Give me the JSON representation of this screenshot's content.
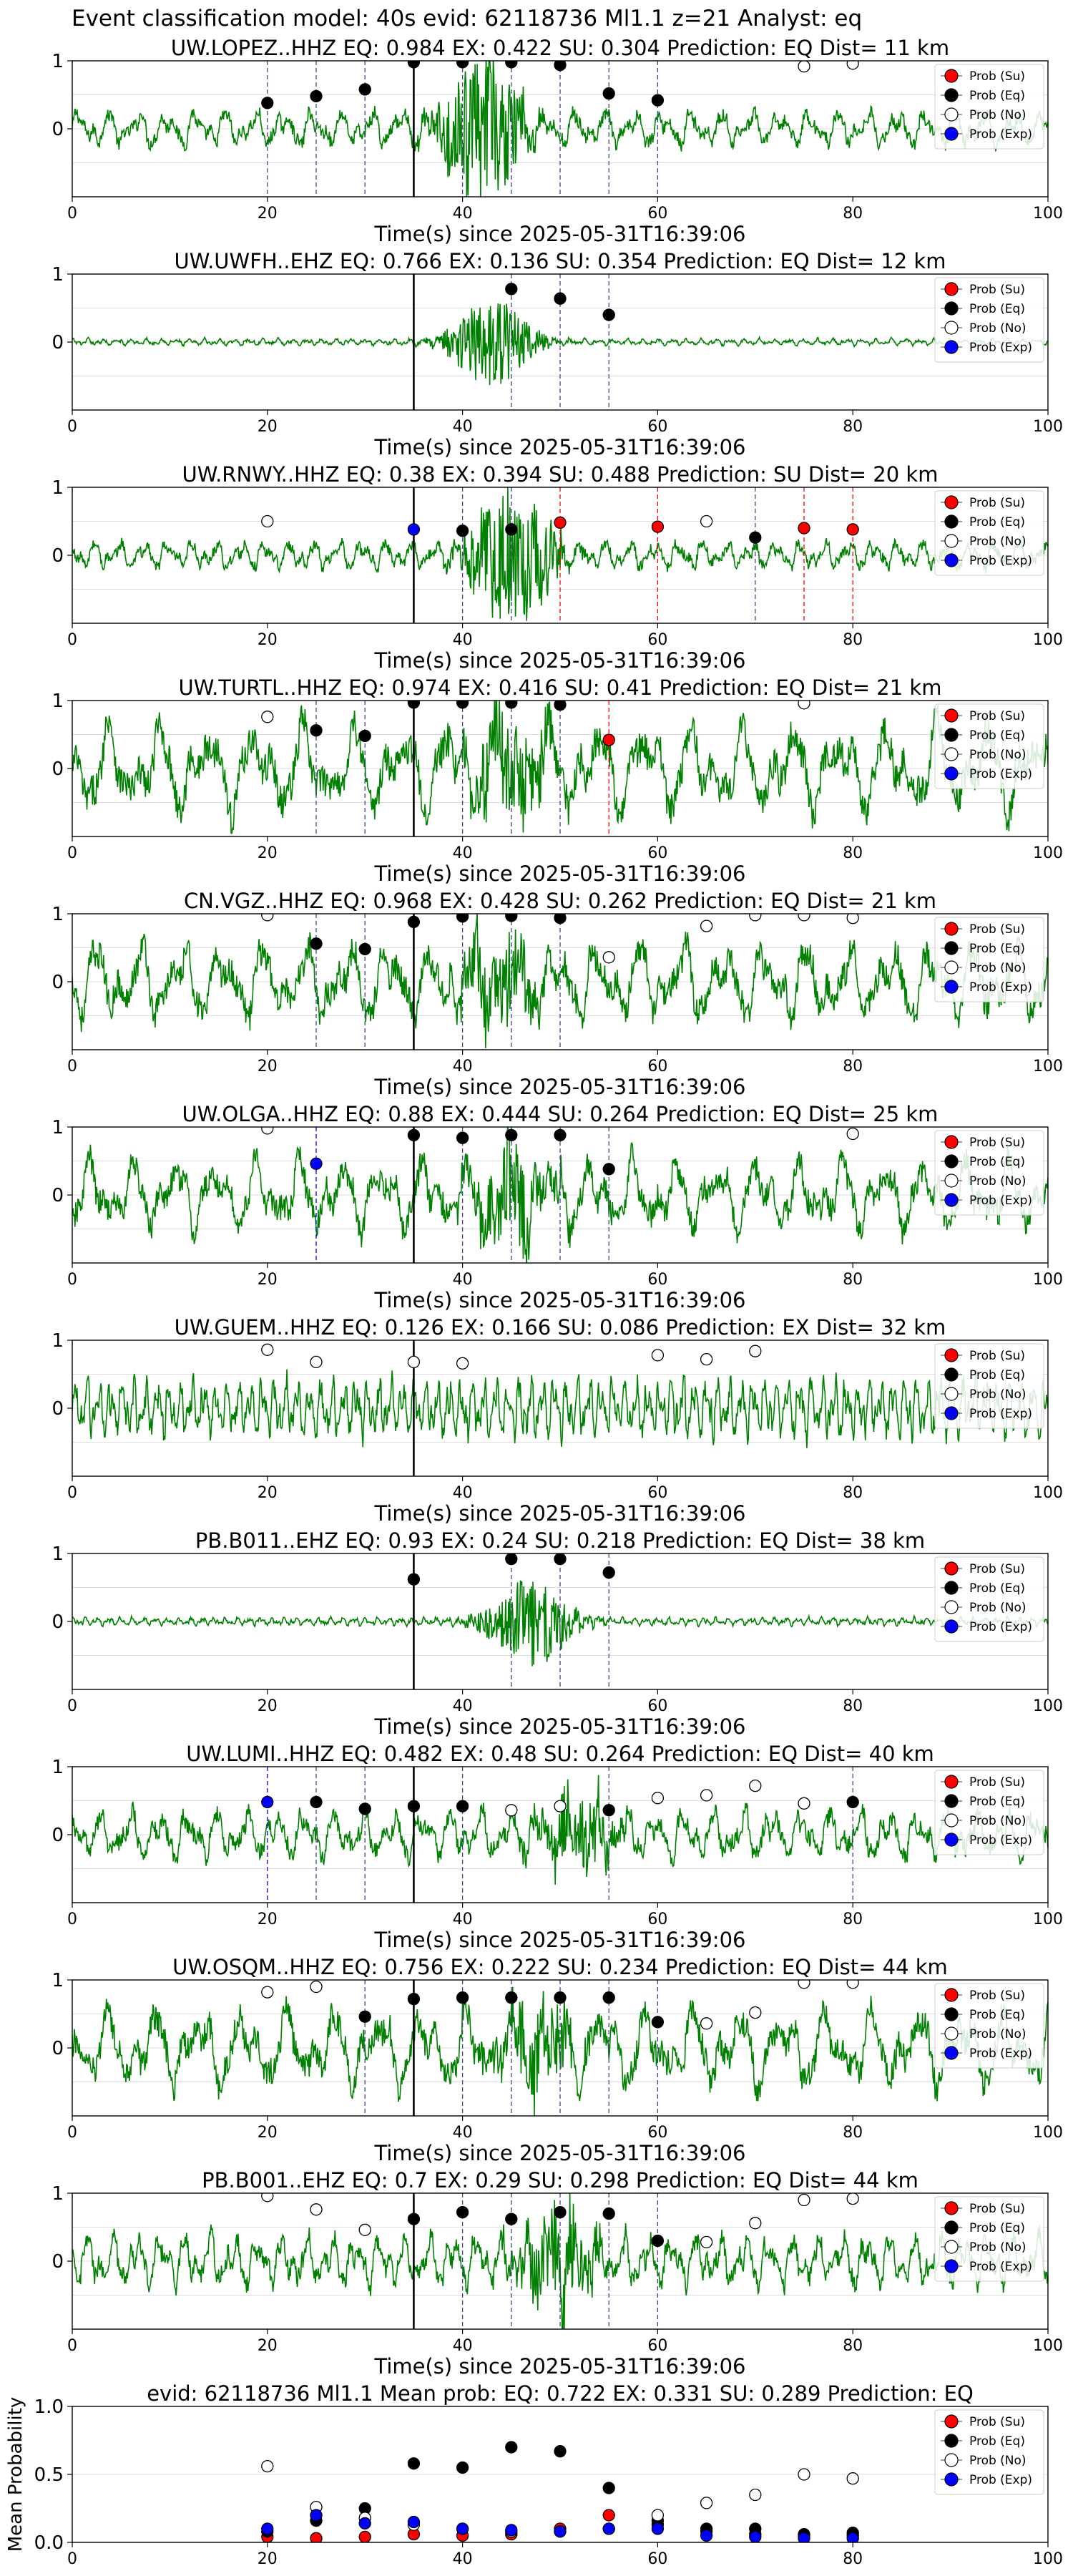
{
  "suptitle": "Event classification model: 40s evid: 62118736 Ml1.1 z=21 Analyst: eq",
  "xlabel": "Time(s) since 2025-05-31T16:39:06",
  "legend": [
    "Prob (Su)",
    "Prob (Eq)",
    "Prob (No)",
    "Prob (Exp)"
  ],
  "colors": {
    "su": "#ff0000",
    "eq": "#000000",
    "no": "#ffffff",
    "exp": "#0000ff",
    "wave": "#008000",
    "pick": "#000000"
  },
  "chart_data": [
    {
      "type": "line",
      "title": "UW.LOPEZ..HHZ   EQ: 0.984  EX: 0.422  SU: 0.304   Prediction: EQ    Dist= 11 km",
      "xlim": [
        0,
        100
      ],
      "ylim": [
        -1,
        1
      ],
      "xticks": [
        0,
        20,
        40,
        60,
        80,
        100
      ],
      "yticks": [
        1,
        0
      ],
      "pick_time": 35,
      "wave_amp": 0.28,
      "wave_freq": 1.0,
      "burst_center": 42,
      "burst_amp": 0.9,
      "points": [
        {
          "x": 20,
          "y": 0.38,
          "cls": "eq"
        },
        {
          "x": 25,
          "y": 0.48,
          "cls": "eq"
        },
        {
          "x": 30,
          "y": 0.58,
          "cls": "eq"
        },
        {
          "x": 35,
          "y": 0.98,
          "cls": "eq"
        },
        {
          "x": 40,
          "y": 0.98,
          "cls": "eq"
        },
        {
          "x": 45,
          "y": 0.98,
          "cls": "eq"
        },
        {
          "x": 50,
          "y": 0.94,
          "cls": "eq"
        },
        {
          "x": 55,
          "y": 0.52,
          "cls": "eq"
        },
        {
          "x": 60,
          "y": 0.42,
          "cls": "eq"
        },
        {
          "x": 75,
          "y": 0.92,
          "cls": "no"
        },
        {
          "x": 80,
          "y": 0.96,
          "cls": "no"
        }
      ]
    },
    {
      "type": "line",
      "title": "UW.UWFH..EHZ   EQ: 0.766  EX: 0.136  SU: 0.354   Prediction: EQ    Dist= 12 km",
      "xlim": [
        0,
        100
      ],
      "ylim": [
        -1,
        1
      ],
      "xticks": [
        0,
        20,
        40,
        60,
        80,
        100
      ],
      "yticks": [
        1,
        0
      ],
      "pick_time": 35,
      "wave_amp": 0.05,
      "wave_freq": 2.0,
      "burst_center": 43,
      "burst_amp": 0.55,
      "points": [
        {
          "x": 45,
          "y": 0.78,
          "cls": "eq"
        },
        {
          "x": 50,
          "y": 0.64,
          "cls": "eq"
        },
        {
          "x": 55,
          "y": 0.4,
          "cls": "eq"
        }
      ]
    },
    {
      "type": "line",
      "title": "UW.RNWY..HHZ   EQ: 0.38  EX: 0.394  SU: 0.488   Prediction: SU    Dist= 20 km",
      "xlim": [
        0,
        100
      ],
      "ylim": [
        -1,
        1
      ],
      "xticks": [
        0,
        20,
        40,
        60,
        80,
        100
      ],
      "yticks": [
        1,
        0
      ],
      "pick_time": 35,
      "wave_amp": 0.22,
      "wave_freq": 1.2,
      "burst_center": 45,
      "burst_amp": 0.9,
      "points": [
        {
          "x": 20,
          "y": 0.5,
          "cls": "no"
        },
        {
          "x": 35,
          "y": 0.38,
          "cls": "exp"
        },
        {
          "x": 40,
          "y": 0.36,
          "cls": "eq"
        },
        {
          "x": 45,
          "y": 0.38,
          "cls": "eq"
        },
        {
          "x": 50,
          "y": 0.48,
          "cls": "su"
        },
        {
          "x": 60,
          "y": 0.42,
          "cls": "su"
        },
        {
          "x": 65,
          "y": 0.5,
          "cls": "no"
        },
        {
          "x": 70,
          "y": 0.26,
          "cls": "eq"
        },
        {
          "x": 75,
          "y": 0.4,
          "cls": "su"
        },
        {
          "x": 80,
          "y": 0.38,
          "cls": "su"
        }
      ]
    },
    {
      "type": "line",
      "title": "UW.TURTL..HHZ   EQ: 0.974  EX: 0.416  SU: 0.41   Prediction: EQ    Dist= 21 km",
      "xlim": [
        0,
        100
      ],
      "ylim": [
        -1,
        1
      ],
      "xticks": [
        0,
        20,
        40,
        60,
        80,
        100
      ],
      "yticks": [
        1,
        0
      ],
      "pick_time": 35,
      "wave_amp": 0.7,
      "wave_freq": 0.6,
      "burst_center": 45,
      "burst_amp": 0.6,
      "points": [
        {
          "x": 20,
          "y": 0.76,
          "cls": "no"
        },
        {
          "x": 25,
          "y": 0.56,
          "cls": "eq"
        },
        {
          "x": 30,
          "y": 0.48,
          "cls": "eq"
        },
        {
          "x": 35,
          "y": 0.97,
          "cls": "eq"
        },
        {
          "x": 40,
          "y": 0.97,
          "cls": "eq"
        },
        {
          "x": 45,
          "y": 0.97,
          "cls": "eq"
        },
        {
          "x": 50,
          "y": 0.94,
          "cls": "eq"
        },
        {
          "x": 55,
          "y": 0.42,
          "cls": "su"
        },
        {
          "x": 75,
          "y": 0.96,
          "cls": "no"
        }
      ]
    },
    {
      "type": "line",
      "title": "CN.VGZ..HHZ   EQ: 0.968  EX: 0.428  SU: 0.262   Prediction: EQ    Dist= 21 km",
      "xlim": [
        0,
        100
      ],
      "ylim": [
        -1,
        1
      ],
      "xticks": [
        0,
        20,
        40,
        60,
        80,
        100
      ],
      "yticks": [
        1,
        0
      ],
      "pick_time": 35,
      "wave_amp": 0.6,
      "wave_freq": 0.7,
      "burst_center": 44,
      "burst_amp": 0.5,
      "points": [
        {
          "x": 20,
          "y": 0.98,
          "cls": "no"
        },
        {
          "x": 25,
          "y": 0.56,
          "cls": "eq"
        },
        {
          "x": 30,
          "y": 0.48,
          "cls": "eq"
        },
        {
          "x": 35,
          "y": 0.88,
          "cls": "eq"
        },
        {
          "x": 40,
          "y": 0.96,
          "cls": "eq"
        },
        {
          "x": 45,
          "y": 0.97,
          "cls": "eq"
        },
        {
          "x": 50,
          "y": 0.94,
          "cls": "eq"
        },
        {
          "x": 55,
          "y": 0.36,
          "cls": "no"
        },
        {
          "x": 65,
          "y": 0.82,
          "cls": "no"
        },
        {
          "x": 70,
          "y": 0.98,
          "cls": "no"
        },
        {
          "x": 75,
          "y": 0.98,
          "cls": "no"
        },
        {
          "x": 80,
          "y": 0.94,
          "cls": "no"
        }
      ]
    },
    {
      "type": "line",
      "title": "UW.OLGA..HHZ   EQ: 0.88  EX: 0.444  SU: 0.264   Prediction: EQ    Dist= 25 km",
      "xlim": [
        0,
        100
      ],
      "ylim": [
        -1,
        1
      ],
      "xticks": [
        0,
        20,
        40,
        60,
        80,
        100
      ],
      "yticks": [
        1,
        0
      ],
      "pick_time": 35,
      "wave_amp": 0.55,
      "wave_freq": 0.7,
      "burst_center": 45,
      "burst_amp": 0.6,
      "points": [
        {
          "x": 20,
          "y": 0.98,
          "cls": "no"
        },
        {
          "x": 25,
          "y": 0.46,
          "cls": "exp"
        },
        {
          "x": 35,
          "y": 0.88,
          "cls": "eq"
        },
        {
          "x": 40,
          "y": 0.84,
          "cls": "eq"
        },
        {
          "x": 45,
          "y": 0.88,
          "cls": "eq"
        },
        {
          "x": 50,
          "y": 0.88,
          "cls": "eq"
        },
        {
          "x": 55,
          "y": 0.38,
          "cls": "eq"
        },
        {
          "x": 80,
          "y": 0.9,
          "cls": "no"
        }
      ]
    },
    {
      "type": "line",
      "title": "UW.GUEM..HHZ   EQ: 0.126  EX: 0.166  SU: 0.086   Prediction: EX    Dist= 32 km",
      "xlim": [
        0,
        100
      ],
      "ylim": [
        -1,
        1
      ],
      "xticks": [
        0,
        20,
        40,
        60,
        80,
        100
      ],
      "yticks": [
        1,
        0
      ],
      "pick_time": 35,
      "wave_amp": 0.45,
      "wave_freq": 2.5,
      "burst_center": -100,
      "burst_amp": 0,
      "points": [
        {
          "x": 20,
          "y": 0.86,
          "cls": "no"
        },
        {
          "x": 25,
          "y": 0.68,
          "cls": "no"
        },
        {
          "x": 35,
          "y": 0.68,
          "cls": "no"
        },
        {
          "x": 40,
          "y": 0.66,
          "cls": "no"
        },
        {
          "x": 60,
          "y": 0.78,
          "cls": "no"
        },
        {
          "x": 65,
          "y": 0.72,
          "cls": "no"
        },
        {
          "x": 70,
          "y": 0.84,
          "cls": "no"
        }
      ]
    },
    {
      "type": "line",
      "title": "PB.B011..EHZ   EQ: 0.93  EX: 0.24  SU: 0.218   Prediction: EQ    Dist= 38 km",
      "xlim": [
        0,
        100
      ],
      "ylim": [
        -1,
        1
      ],
      "xticks": [
        0,
        20,
        40,
        60,
        80,
        100
      ],
      "yticks": [
        1,
        0
      ],
      "pick_time": 35,
      "wave_amp": 0.06,
      "wave_freq": 2.5,
      "burst_center": 47,
      "burst_amp": 0.55,
      "points": [
        {
          "x": 35,
          "y": 0.62,
          "cls": "eq"
        },
        {
          "x": 45,
          "y": 0.92,
          "cls": "eq"
        },
        {
          "x": 50,
          "y": 0.92,
          "cls": "eq"
        },
        {
          "x": 55,
          "y": 0.72,
          "cls": "eq"
        }
      ]
    },
    {
      "type": "line",
      "title": "UW.LUMI..HHZ   EQ: 0.482  EX: 0.48  SU: 0.264   Prediction: EQ    Dist= 40 km",
      "xlim": [
        0,
        100
      ],
      "ylim": [
        -1,
        1
      ],
      "xticks": [
        0,
        20,
        40,
        60,
        80,
        100
      ],
      "yticks": [
        1,
        0
      ],
      "pick_time": 35,
      "wave_amp": 0.38,
      "wave_freq": 1.0,
      "burst_center": 52,
      "burst_amp": 0.45,
      "points": [
        {
          "x": 20,
          "y": 0.48,
          "cls": "exp"
        },
        {
          "x": 25,
          "y": 0.48,
          "cls": "eq"
        },
        {
          "x": 30,
          "y": 0.38,
          "cls": "eq"
        },
        {
          "x": 35,
          "y": 0.42,
          "cls": "eq"
        },
        {
          "x": 40,
          "y": 0.42,
          "cls": "eq"
        },
        {
          "x": 45,
          "y": 0.36,
          "cls": "no"
        },
        {
          "x": 50,
          "y": 0.42,
          "cls": "no"
        },
        {
          "x": 55,
          "y": 0.36,
          "cls": "eq"
        },
        {
          "x": 60,
          "y": 0.54,
          "cls": "no"
        },
        {
          "x": 65,
          "y": 0.58,
          "cls": "no"
        },
        {
          "x": 70,
          "y": 0.72,
          "cls": "no"
        },
        {
          "x": 75,
          "y": 0.46,
          "cls": "no"
        },
        {
          "x": 80,
          "y": 0.48,
          "cls": "eq"
        }
      ]
    },
    {
      "type": "line",
      "title": "UW.OSQM..HHZ   EQ: 0.756  EX: 0.222  SU: 0.234   Prediction: EQ    Dist= 44 km",
      "xlim": [
        0,
        100
      ],
      "ylim": [
        -1,
        1
      ],
      "xticks": [
        0,
        20,
        40,
        60,
        80,
        100
      ],
      "yticks": [
        1,
        0
      ],
      "pick_time": 35,
      "wave_amp": 0.6,
      "wave_freq": 0.65,
      "burst_center": 48,
      "burst_amp": 0.5,
      "points": [
        {
          "x": 20,
          "y": 0.82,
          "cls": "no"
        },
        {
          "x": 25,
          "y": 0.9,
          "cls": "no"
        },
        {
          "x": 30,
          "y": 0.46,
          "cls": "eq"
        },
        {
          "x": 35,
          "y": 0.72,
          "cls": "eq"
        },
        {
          "x": 40,
          "y": 0.74,
          "cls": "eq"
        },
        {
          "x": 45,
          "y": 0.74,
          "cls": "eq"
        },
        {
          "x": 50,
          "y": 0.74,
          "cls": "eq"
        },
        {
          "x": 55,
          "y": 0.74,
          "cls": "eq"
        },
        {
          "x": 60,
          "y": 0.38,
          "cls": "eq"
        },
        {
          "x": 65,
          "y": 0.36,
          "cls": "no"
        },
        {
          "x": 70,
          "y": 0.52,
          "cls": "no"
        },
        {
          "x": 75,
          "y": 0.96,
          "cls": "no"
        },
        {
          "x": 80,
          "y": 0.96,
          "cls": "no"
        }
      ]
    },
    {
      "type": "line",
      "title": "PB.B001..EHZ   EQ: 0.7  EX: 0.29  SU: 0.298   Prediction: EQ    Dist= 44 km",
      "xlim": [
        0,
        100
      ],
      "ylim": [
        -1,
        1
      ],
      "xticks": [
        0,
        20,
        40,
        60,
        80,
        100
      ],
      "yticks": [
        1,
        0
      ],
      "pick_time": 35,
      "wave_amp": 0.4,
      "wave_freq": 1.2,
      "burst_center": 50,
      "burst_amp": 0.6,
      "points": [
        {
          "x": 20,
          "y": 0.96,
          "cls": "no"
        },
        {
          "x": 25,
          "y": 0.76,
          "cls": "no"
        },
        {
          "x": 30,
          "y": 0.46,
          "cls": "no"
        },
        {
          "x": 35,
          "y": 0.62,
          "cls": "eq"
        },
        {
          "x": 40,
          "y": 0.72,
          "cls": "eq"
        },
        {
          "x": 45,
          "y": 0.62,
          "cls": "eq"
        },
        {
          "x": 50,
          "y": 0.72,
          "cls": "eq"
        },
        {
          "x": 55,
          "y": 0.7,
          "cls": "eq"
        },
        {
          "x": 60,
          "y": 0.3,
          "cls": "eq"
        },
        {
          "x": 65,
          "y": 0.28,
          "cls": "no"
        },
        {
          "x": 70,
          "y": 0.56,
          "cls": "no"
        },
        {
          "x": 75,
          "y": 0.9,
          "cls": "no"
        },
        {
          "x": 80,
          "y": 0.92,
          "cls": "no"
        }
      ]
    },
    {
      "type": "scatter",
      "title": "evid: 62118736  Ml1.1    Mean prob:   EQ: 0.722  EX: 0.331  SU: 0.289   Prediction: EQ",
      "ylabel": "Mean Probability",
      "xlim": [
        0,
        100
      ],
      "ylim": [
        0,
        1
      ],
      "xticks": [
        0,
        20,
        40,
        60,
        80,
        100
      ],
      "yticks": [
        1.0,
        0.5,
        0.0
      ],
      "series": [
        {
          "name": "Prob (Su)",
          "cls": "su",
          "x": [
            20,
            25,
            30,
            35,
            40,
            45,
            50,
            55,
            60,
            65,
            70,
            75,
            80
          ],
          "y": [
            0.04,
            0.03,
            0.04,
            0.06,
            0.05,
            0.06,
            0.1,
            0.2,
            0.13,
            0.08,
            0.06,
            0.05,
            0.05
          ]
        },
        {
          "name": "Prob (Eq)",
          "cls": "eq",
          "x": [
            20,
            25,
            30,
            35,
            40,
            45,
            50,
            55,
            60,
            65,
            70,
            75,
            80
          ],
          "y": [
            0.08,
            0.16,
            0.25,
            0.58,
            0.55,
            0.7,
            0.67,
            0.4,
            0.16,
            0.1,
            0.1,
            0.06,
            0.07
          ]
        },
        {
          "name": "Prob (No)",
          "cls": "no",
          "x": [
            20,
            25,
            30,
            35,
            40,
            45,
            50,
            55,
            60,
            65,
            70,
            75,
            80
          ],
          "y": [
            0.56,
            0.26,
            0.18,
            0.13,
            0.1,
            0.08,
            0.08,
            0.1,
            0.2,
            0.29,
            0.35,
            0.5,
            0.47
          ]
        },
        {
          "name": "Prob (Exp)",
          "cls": "exp",
          "x": [
            20,
            25,
            30,
            35,
            40,
            45,
            50,
            55,
            60,
            65,
            70,
            75,
            80
          ],
          "y": [
            0.1,
            0.2,
            0.14,
            0.15,
            0.1,
            0.09,
            0.08,
            0.1,
            0.1,
            0.05,
            0.04,
            0.03,
            0.03
          ]
        }
      ]
    }
  ]
}
